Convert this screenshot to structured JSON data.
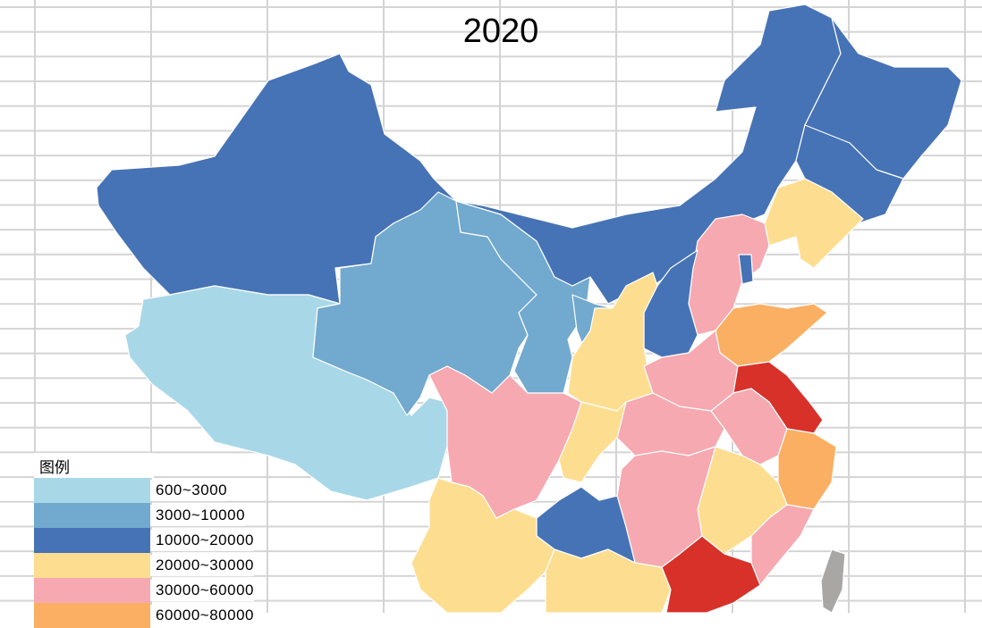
{
  "title": "2020",
  "legend": {
    "title": "图例",
    "items": [
      {
        "label": "600~3000",
        "color": "#A8D8E8"
      },
      {
        "label": "3000~10000",
        "color": "#72A9CE"
      },
      {
        "label": "10000~20000",
        "color": "#4673B5"
      },
      {
        "label": "20000~30000",
        "color": "#FDDE90"
      },
      {
        "label": "30000~60000",
        "color": "#F6A9B0"
      },
      {
        "label": "60000~80000",
        "color": "#FBAF62"
      }
    ],
    "top_class_color": "#D7312A",
    "no_data_color": "#A9A6A6"
  }
}
